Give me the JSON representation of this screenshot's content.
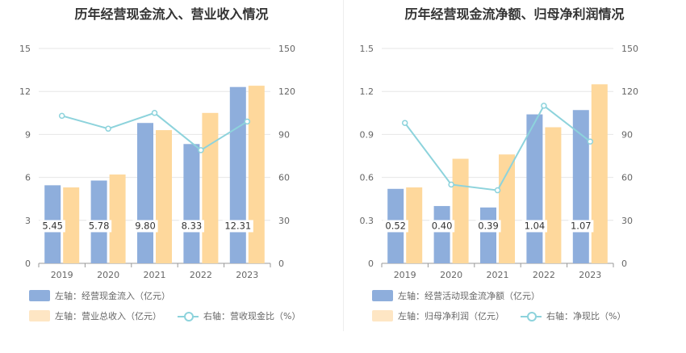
{
  "chart_data": [
    {
      "type": "bar",
      "title": "历年经营现金流入、营业收入情况",
      "categories": [
        "2019",
        "2020",
        "2021",
        "2022",
        "2023"
      ],
      "left_axis": {
        "ticks": [
          "0",
          "3",
          "6",
          "9",
          "12",
          "15"
        ],
        "ylim": [
          0,
          15
        ]
      },
      "right_axis": {
        "ticks": [
          "0",
          "30",
          "60",
          "90",
          "120",
          "150"
        ],
        "ylim": [
          0,
          150
        ]
      },
      "grid": true,
      "legend_placement": "bottom",
      "series": [
        {
          "name": "左轴：经营现金流入（亿元）",
          "kind": "bar",
          "axis": "left",
          "color": "#8eaedc",
          "values": [
            5.45,
            5.78,
            9.8,
            8.33,
            12.31
          ],
          "labels": [
            "5.45",
            "5.78",
            "9.80",
            "8.33",
            "12.31"
          ]
        },
        {
          "name": "左轴：营业总收入（亿元）",
          "kind": "bar",
          "axis": "left",
          "color": "#fed89c",
          "values": [
            5.3,
            6.2,
            9.3,
            10.5,
            12.4
          ]
        },
        {
          "name": "右轴：营收现金比（%）",
          "kind": "line",
          "axis": "right",
          "color": "#8dd3dc",
          "values": [
            103,
            94,
            105,
            79,
            99
          ]
        }
      ]
    },
    {
      "type": "bar",
      "title": "历年经营现金流净额、归母净利润情况",
      "categories": [
        "2019",
        "2020",
        "2021",
        "2022",
        "2023"
      ],
      "left_axis": {
        "ticks": [
          "0",
          "0.3",
          "0.6",
          "0.9",
          "1.2",
          "1.5"
        ],
        "ylim": [
          0,
          1.5
        ]
      },
      "right_axis": {
        "ticks": [
          "0",
          "30",
          "60",
          "90",
          "120",
          "150"
        ],
        "ylim": [
          0,
          150
        ]
      },
      "grid": true,
      "legend_placement": "bottom",
      "series": [
        {
          "name": "左轴：经营活动现金流净额（亿元）",
          "kind": "bar",
          "axis": "left",
          "color": "#8eaedc",
          "values": [
            0.52,
            0.4,
            0.39,
            1.04,
            1.07
          ],
          "labels": [
            "0.52",
            "0.40",
            "0.39",
            "1.04",
            "1.07"
          ]
        },
        {
          "name": "左轴：归母净利润（亿元）",
          "kind": "bar",
          "axis": "left",
          "color": "#fed89c",
          "values": [
            0.53,
            0.73,
            0.76,
            0.95,
            1.25
          ]
        },
        {
          "name": "右轴：净现比（%）",
          "kind": "line",
          "axis": "right",
          "color": "#8dd3dc",
          "values": [
            98,
            55,
            51,
            110,
            85
          ]
        }
      ]
    }
  ]
}
